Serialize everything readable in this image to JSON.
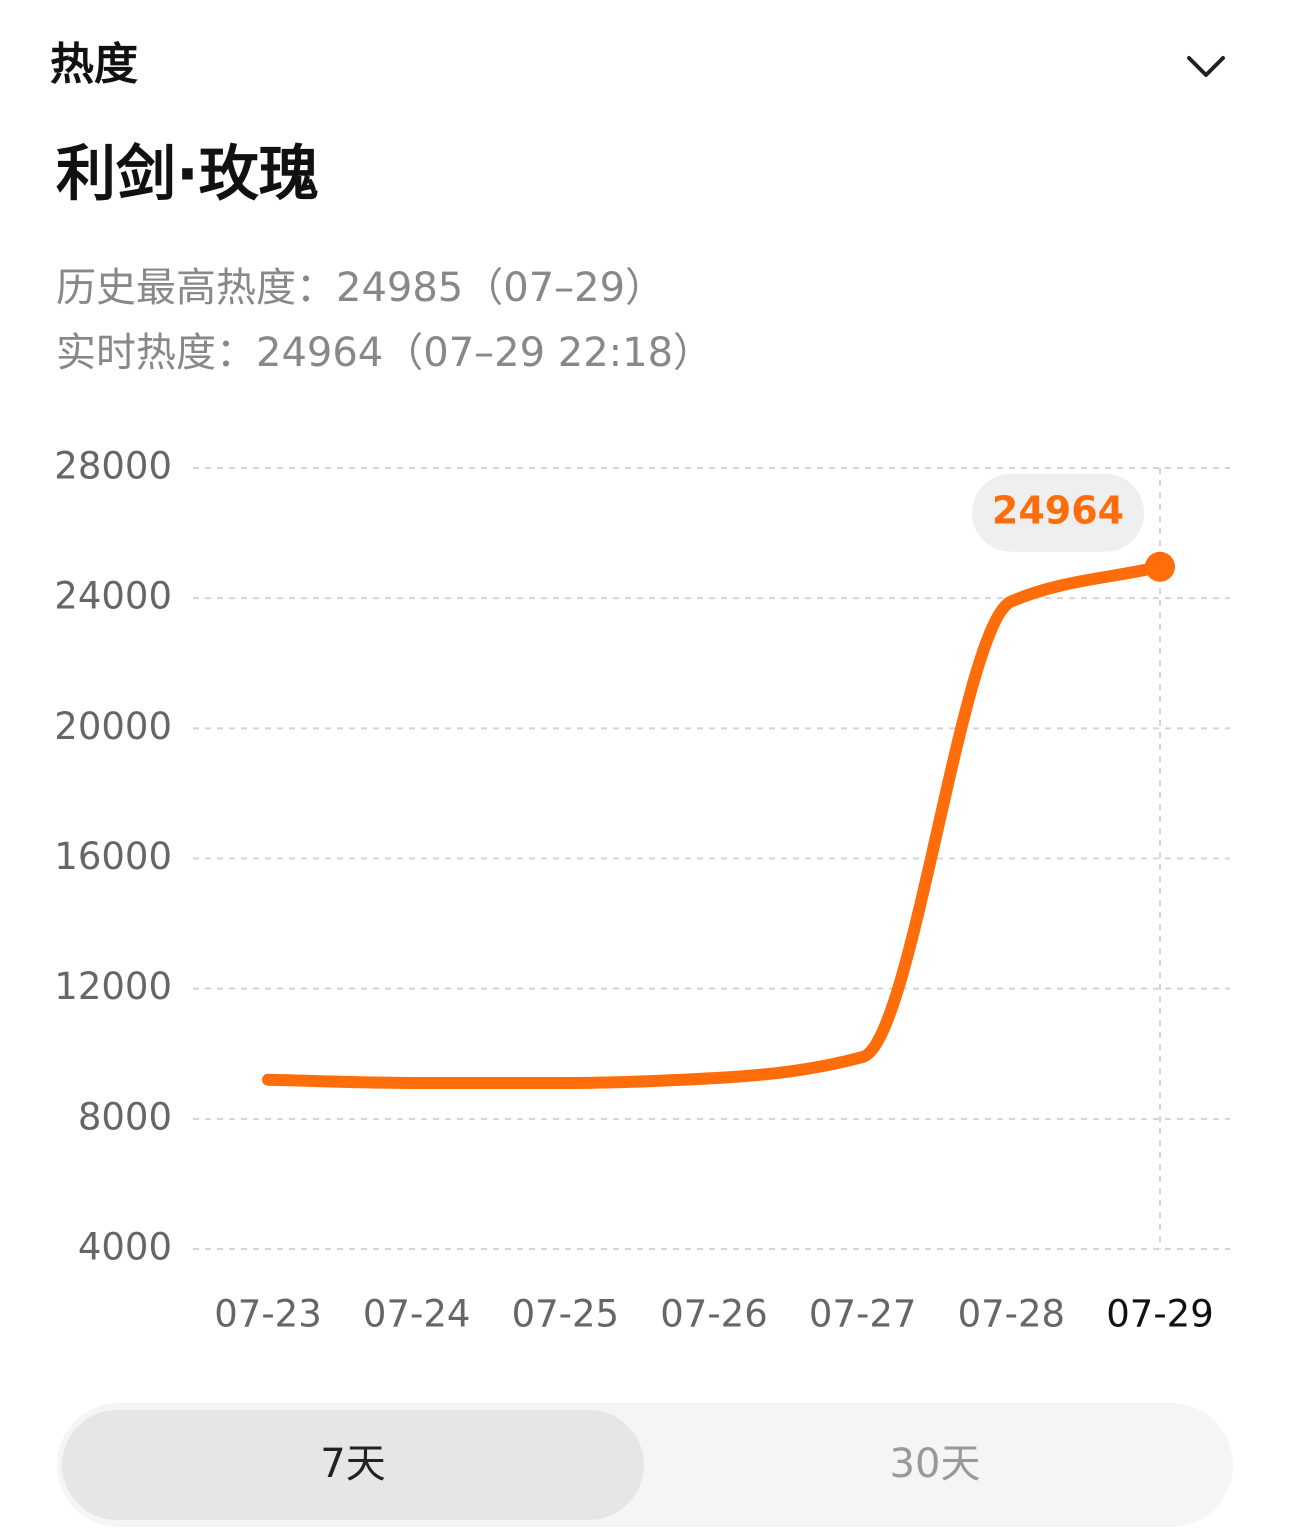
{
  "header": {
    "title": "热度"
  },
  "title": "利剑·玫瑰",
  "stats": [
    "历史最高热度：24985（07–29）",
    "实时热度：24964（07–29 22:18）"
  ],
  "chart_data": {
    "type": "line",
    "categories": [
      "07-23",
      "07-24",
      "07-25",
      "07-26",
      "07-27",
      "07-28",
      "07-29"
    ],
    "values": [
      9200,
      9100,
      9100,
      9250,
      9900,
      23900,
      24964
    ],
    "color": "#ff6d0a",
    "ylim": [
      4000,
      28000
    ],
    "yticks": [
      4000,
      8000,
      12000,
      16000,
      20000,
      24000,
      28000
    ],
    "grid": true
  },
  "tabs": [
    "7天",
    "30天"
  ]
}
